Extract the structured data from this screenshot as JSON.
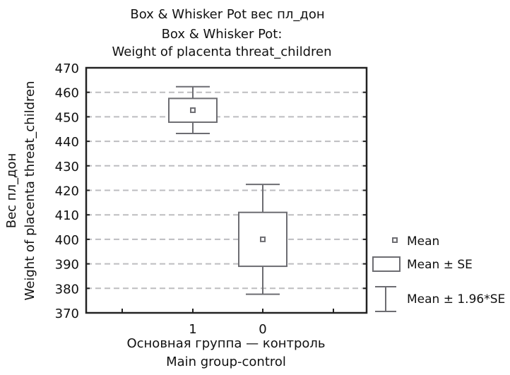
{
  "chart_data": {
    "type": "box",
    "title": [
      "Box & Whisker Pot вес пл_дон",
      "Box & Whisker Pot:",
      "Weight of placenta threat_children"
    ],
    "xlabel": [
      "Основная группа — контроль",
      "Main group-control"
    ],
    "ylabel": [
      "Вес пл_дон",
      "Weight of placenta threat_children"
    ],
    "ylim": [
      370,
      470
    ],
    "yticks": [
      370,
      380,
      390,
      400,
      410,
      420,
      430,
      440,
      450,
      460,
      470
    ],
    "grid": "horizontal dashed",
    "categories": [
      "1",
      "0"
    ],
    "boxes": [
      {
        "category": "1",
        "mean": 452.7,
        "mean_minus_se": 447.8,
        "mean_plus_se": 457.5,
        "mean_minus_1_96se": 443.2,
        "mean_plus_1_96se": 462.3
      },
      {
        "category": "0",
        "mean": 400.0,
        "mean_minus_se": 389.0,
        "mean_plus_se": 411.0,
        "mean_minus_1_96se": 377.6,
        "mean_plus_1_96se": 422.4
      }
    ],
    "legend": {
      "position": "right",
      "items": [
        "Mean",
        "Mean ± SE",
        "Mean ± 1.96*SE"
      ]
    },
    "colors": {
      "box": "#6d6d72",
      "grid": "#bdbdc0",
      "axis": "#222222"
    }
  }
}
